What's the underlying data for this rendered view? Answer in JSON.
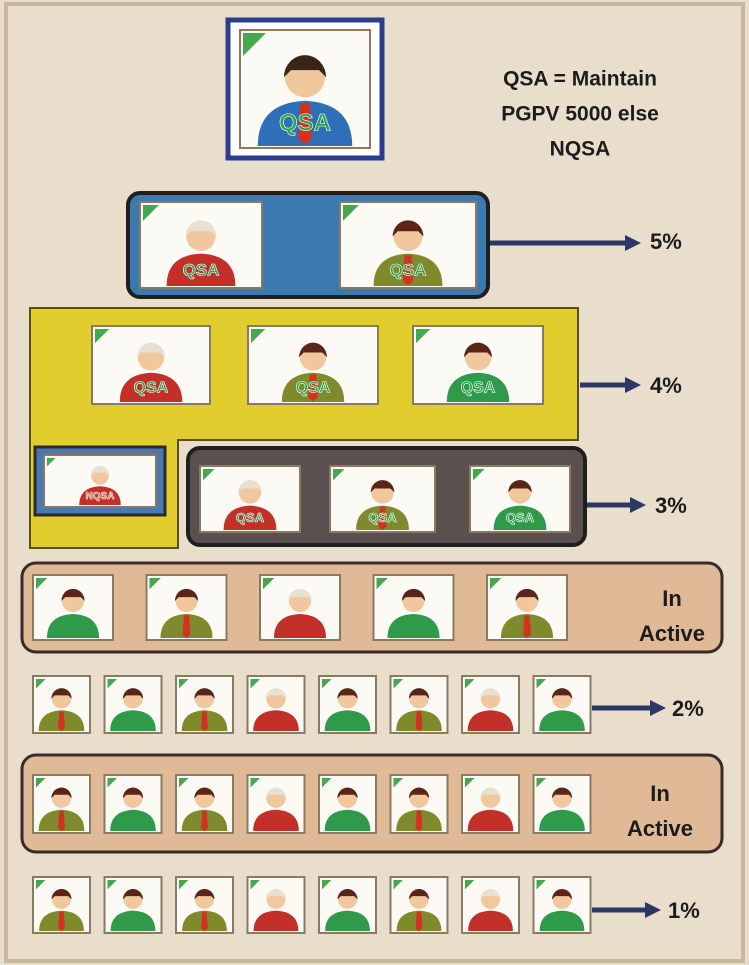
{
  "top_node": {
    "label": "QSA"
  },
  "rule_note": [
    "QSA = Maintain",
    "PGPV  5000 else",
    "NQSA"
  ],
  "tiers": [
    {
      "members": [
        "QSA",
        "QSA"
      ],
      "rate": "5%"
    },
    {
      "members": [
        "QSA",
        "QSA",
        "QSA"
      ],
      "rate": "4%"
    },
    {
      "side_member": "NQSA",
      "members": [
        "QSA",
        "QSA",
        "QSA"
      ],
      "rate": "3%"
    },
    {
      "status": [
        "In",
        "Active"
      ]
    },
    {
      "rate": "2%"
    },
    {
      "status": [
        "In",
        "Active"
      ]
    },
    {
      "rate": "1%"
    }
  ]
}
